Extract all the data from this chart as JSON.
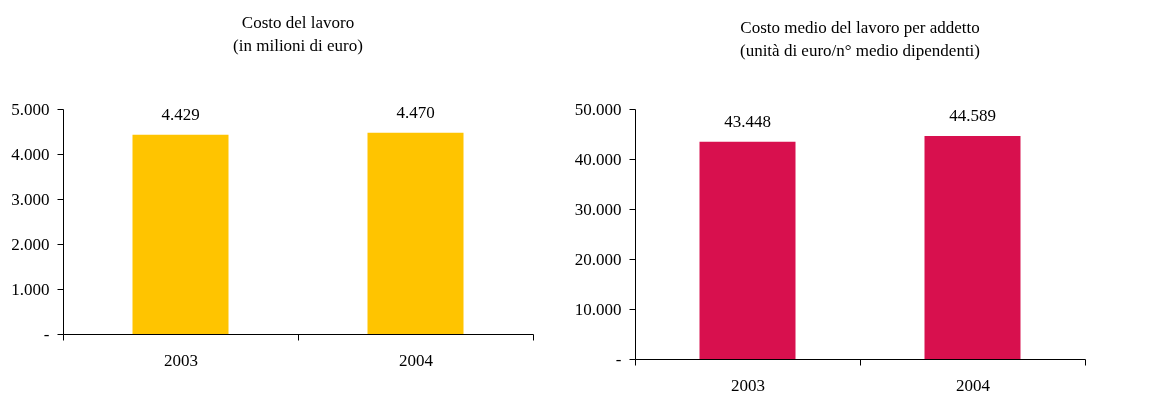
{
  "chart_data": [
    {
      "type": "bar",
      "title": "Costo del lavoro",
      "subtitle": "(in milioni di euro)",
      "categories": [
        "2003",
        "2004"
      ],
      "values": [
        4429,
        4470
      ],
      "value_labels": [
        "4.429",
        "4.470"
      ],
      "color": "#ffc400",
      "ylim": [
        0,
        5000
      ],
      "yticks": [
        {
          "value": 0,
          "label": "-"
        },
        {
          "value": 1000,
          "label": "1.000"
        },
        {
          "value": 2000,
          "label": "2.000"
        },
        {
          "value": 3000,
          "label": "3.000"
        },
        {
          "value": 4000,
          "label": "4.000"
        },
        {
          "value": 5000,
          "label": "5.000"
        }
      ],
      "grid": false
    },
    {
      "type": "bar",
      "title": "Costo medio del lavoro per addetto",
      "subtitle": "(unità di euro/n° medio dipendenti)",
      "categories": [
        "2003",
        "2004"
      ],
      "values": [
        43448,
        44589
      ],
      "value_labels": [
        "43.448",
        "44.589"
      ],
      "color": "#d8104e",
      "ylim": [
        0,
        50000
      ],
      "yticks": [
        {
          "value": 0,
          "label": "-"
        },
        {
          "value": 10000,
          "label": "10.000"
        },
        {
          "value": 20000,
          "label": "20.000"
        },
        {
          "value": 30000,
          "label": "30.000"
        },
        {
          "value": 40000,
          "label": "40.000"
        },
        {
          "value": 50000,
          "label": "50.000"
        }
      ],
      "grid": false
    }
  ]
}
